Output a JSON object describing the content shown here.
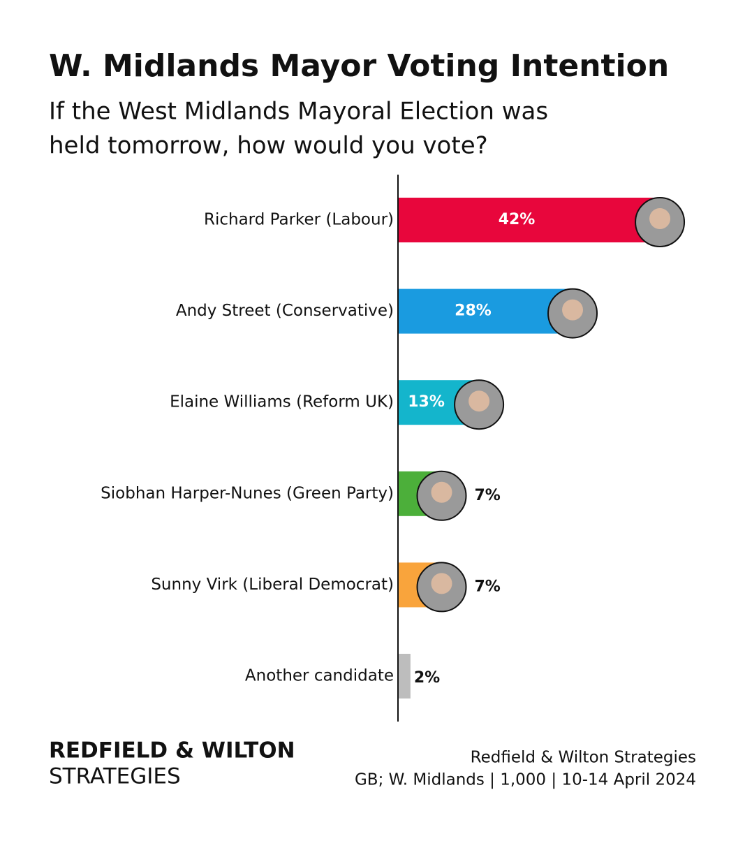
{
  "chart_data": {
    "type": "bar",
    "orientation": "horizontal",
    "title": "W. Midlands Mayor Voting Intention",
    "subtitle": [
      "If the West Midlands Mayoral Election was",
      "held tomorrow, how would you vote?"
    ],
    "categories": [
      "Richard Parker (Labour)",
      "Andy Street (Conservative)",
      "Elaine Williams (Reform UK)",
      "Siobhan Harper-Nunes (Green Party)",
      "Sunny Virk (Liberal Democrat)",
      "Another candidate"
    ],
    "values": [
      42,
      28,
      13,
      7,
      7,
      2
    ],
    "value_labels": [
      "42%",
      "28%",
      "13%",
      "7%",
      "7%",
      "2%"
    ],
    "colors": [
      "#e8063c",
      "#1a9be0",
      "#14b5cc",
      "#4caf3a",
      "#f9a43c",
      "#bdbdbd"
    ],
    "brand": [
      "REDFIELD & WILTON",
      "STRATEGIES"
    ],
    "source": [
      "Redfield & Wilton Strategies",
      "GB; W. Midlands | 1,000 | 10-14 April 2024"
    ]
  }
}
